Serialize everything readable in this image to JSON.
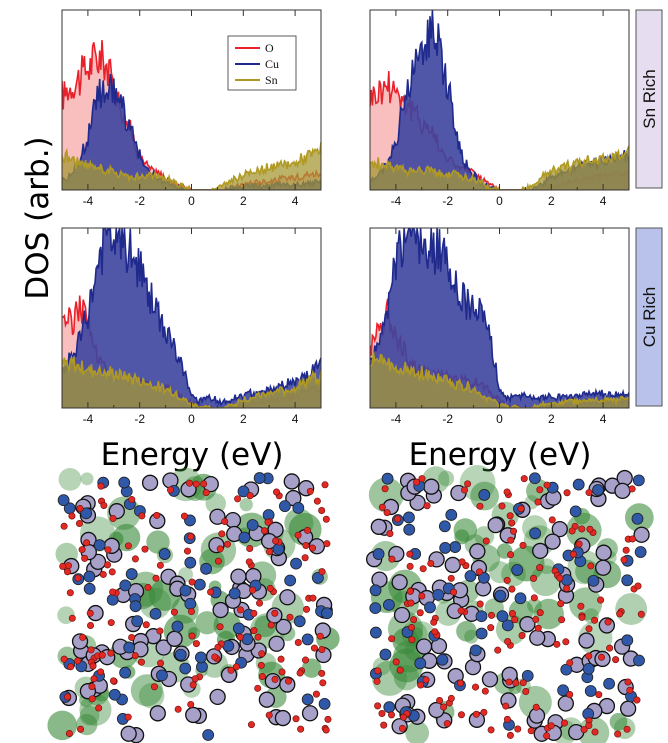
{
  "figure": {
    "ylabel": "DOS (arb.)",
    "xlabel": "Energy (eV)",
    "row_labels": [
      "Sn Rich",
      "Cu Rich"
    ]
  },
  "colors": {
    "O": "#e8212b",
    "Cu": "#1f2a8c",
    "Sn": "#b09a24",
    "O_fill": "#f7a3a3",
    "Cu_fill": "#3d45a0",
    "Sn_fill": "#a59835",
    "sn_rich_box": "#e6def0",
    "cu_rich_box": "#b9c2ea",
    "atom_cu": "#2f58a8",
    "atom_o": "#e22a24",
    "atom_sn": "#a7a0c8",
    "density": "#3b8a3b"
  },
  "chart_data": [
    {
      "type": "area",
      "panel": "sn-rich-left",
      "xlim": [
        -5,
        5
      ],
      "xticks": [
        -4,
        -2,
        0,
        2,
        4
      ],
      "legend_placement": "top-center",
      "legend": [
        "O",
        "Cu",
        "Sn"
      ],
      "series": [
        {
          "name": "O",
          "x": [
            -5,
            -4.6,
            -4.3,
            -4,
            -3.6,
            -3.3,
            -3,
            -2.6,
            -2.3,
            -2,
            -1.6,
            -1.2,
            -0.8,
            -0.4,
            0,
            0.3,
            0.8,
            1.3,
            1.7,
            2.2,
            2.8,
            3.4,
            4,
            4.5,
            5
          ],
          "y": [
            0.55,
            0.62,
            0.66,
            0.72,
            0.78,
            0.74,
            0.6,
            0.45,
            0.32,
            0.2,
            0.12,
            0.09,
            0.05,
            0.02,
            0,
            0,
            0,
            0,
            0.02,
            0.04,
            0.05,
            0.06,
            0.08,
            0.09,
            0.1
          ]
        },
        {
          "name": "Cu",
          "x": [
            -5,
            -4.6,
            -4.3,
            -4,
            -3.6,
            -3.3,
            -3,
            -2.6,
            -2.3,
            -2,
            -1.6,
            -1.2,
            -0.8,
            -0.4,
            0,
            0.3,
            0.8,
            1.3,
            1.7,
            2.2,
            2.8,
            3.4,
            4,
            4.5,
            5
          ],
          "y": [
            0.05,
            0.1,
            0.18,
            0.32,
            0.56,
            0.6,
            0.58,
            0.46,
            0.32,
            0.2,
            0.1,
            0.06,
            0.03,
            0.01,
            0,
            0,
            0,
            0,
            0.01,
            0.02,
            0.02,
            0.03,
            0.03,
            0.04,
            0.04
          ]
        },
        {
          "name": "Sn",
          "x": [
            -5,
            -4.6,
            -4.3,
            -4,
            -3.6,
            -3.3,
            -3,
            -2.6,
            -2.3,
            -2,
            -1.6,
            -1.2,
            -0.8,
            -0.4,
            0,
            0.3,
            0.8,
            1.3,
            1.7,
            2.2,
            2.8,
            3.4,
            4,
            4.5,
            5
          ],
          "y": [
            0.2,
            0.18,
            0.15,
            0.14,
            0.13,
            0.12,
            0.1,
            0.09,
            0.08,
            0.08,
            0.08,
            0.08,
            0.06,
            0.03,
            0,
            0,
            0,
            0.03,
            0.07,
            0.1,
            0.12,
            0.14,
            0.16,
            0.2,
            0.24
          ]
        }
      ]
    },
    {
      "type": "area",
      "panel": "sn-rich-right",
      "xlim": [
        -5,
        5
      ],
      "xticks": [
        -4,
        -2,
        0,
        2,
        4
      ],
      "series": [
        {
          "name": "O",
          "x": [
            -5,
            -4.6,
            -4.3,
            -4,
            -3.6,
            -3.3,
            -3,
            -2.6,
            -2.3,
            -2,
            -1.6,
            -1.2,
            -0.8,
            -0.4,
            0,
            0.3,
            0.8,
            1.3,
            1.7,
            2.2,
            2.8,
            3.4,
            4,
            4.5,
            5
          ],
          "y": [
            0.55,
            0.58,
            0.62,
            0.6,
            0.5,
            0.45,
            0.4,
            0.34,
            0.26,
            0.18,
            0.14,
            0.12,
            0.08,
            0.03,
            0,
            0,
            0,
            0,
            0.02,
            0.03,
            0.05,
            0.07,
            0.08,
            0.09,
            0.1
          ]
        },
        {
          "name": "Cu",
          "x": [
            -5,
            -4.6,
            -4.3,
            -4,
            -3.6,
            -3.3,
            -3,
            -2.6,
            -2.3,
            -2,
            -1.6,
            -1.2,
            -0.8,
            -0.4,
            0,
            0.3,
            0.8,
            1.3,
            1.7,
            2.2,
            2.8,
            3.4,
            4,
            4.5,
            5
          ],
          "y": [
            0.05,
            0.1,
            0.16,
            0.3,
            0.55,
            0.7,
            0.82,
            1.0,
            0.86,
            0.6,
            0.28,
            0.12,
            0.05,
            0.02,
            0,
            0,
            0,
            0,
            0.04,
            0.1,
            0.13,
            0.15,
            0.16,
            0.18,
            0.2
          ]
        },
        {
          "name": "Sn",
          "x": [
            -5,
            -4.6,
            -4.3,
            -4,
            -3.6,
            -3.3,
            -3,
            -2.6,
            -2.3,
            -2,
            -1.6,
            -1.2,
            -0.8,
            -0.4,
            0,
            0.3,
            0.8,
            1.3,
            1.7,
            2.2,
            2.8,
            3.4,
            4,
            4.5,
            5
          ],
          "y": [
            0.15,
            0.15,
            0.14,
            0.13,
            0.12,
            0.12,
            0.12,
            0.11,
            0.1,
            0.1,
            0.09,
            0.07,
            0.05,
            0.02,
            0,
            0,
            0,
            0.02,
            0.08,
            0.12,
            0.15,
            0.17,
            0.19,
            0.2,
            0.22
          ]
        }
      ]
    },
    {
      "type": "area",
      "panel": "cu-rich-left",
      "xlim": [
        -5,
        5
      ],
      "xticks": [
        -4,
        -2,
        0,
        2,
        4
      ],
      "series": [
        {
          "name": "O",
          "x": [
            -5,
            -4.6,
            -4.3,
            -4,
            -3.6,
            -3.3,
            -3,
            -2.6,
            -2.3,
            -2,
            -1.6,
            -1.2,
            -0.8,
            -0.4,
            0,
            0.3,
            0.8,
            1.3,
            1.7,
            2.2,
            2.8,
            3.4,
            4,
            4.5,
            5
          ],
          "y": [
            0.55,
            0.5,
            0.62,
            0.5,
            0.3,
            0.22,
            0.18,
            0.17,
            0.16,
            0.15,
            0.14,
            0.12,
            0.1,
            0.06,
            0.03,
            0.01,
            0,
            0,
            0.01,
            0.02,
            0.03,
            0.05,
            0.07,
            0.1,
            0.12
          ]
        },
        {
          "name": "Cu",
          "x": [
            -5,
            -4.6,
            -4.3,
            -4,
            -3.6,
            -3.3,
            -3,
            -2.6,
            -2.3,
            -2,
            -1.6,
            -1.2,
            -0.8,
            -0.4,
            0,
            0.3,
            0.8,
            1.3,
            1.7,
            2.2,
            2.8,
            3.4,
            4,
            4.5,
            5
          ],
          "y": [
            0.2,
            0.3,
            0.4,
            0.55,
            0.85,
            1.0,
            1.0,
            0.96,
            0.9,
            0.8,
            0.65,
            0.5,
            0.4,
            0.25,
            0.08,
            0.04,
            0.06,
            0.03,
            0.06,
            0.08,
            0.1,
            0.12,
            0.15,
            0.2,
            0.28
          ]
        },
        {
          "name": "Sn",
          "x": [
            -5,
            -4.6,
            -4.3,
            -4,
            -3.6,
            -3.3,
            -3,
            -2.6,
            -2.3,
            -2,
            -1.6,
            -1.2,
            -0.8,
            -0.4,
            0,
            0.3,
            0.8,
            1.3,
            1.7,
            2.2,
            2.8,
            3.4,
            4,
            4.5,
            5
          ],
          "y": [
            0.25,
            0.26,
            0.24,
            0.22,
            0.22,
            0.2,
            0.2,
            0.18,
            0.17,
            0.16,
            0.14,
            0.12,
            0.1,
            0.06,
            0.02,
            0.01,
            0,
            0,
            0.03,
            0.06,
            0.08,
            0.1,
            0.12,
            0.16,
            0.2
          ]
        }
      ]
    },
    {
      "type": "area",
      "panel": "cu-rich-right",
      "xlim": [
        -5,
        5
      ],
      "xticks": [
        -4,
        -2,
        0,
        2,
        4
      ],
      "series": [
        {
          "name": "O",
          "x": [
            -5,
            -4.6,
            -4.3,
            -4,
            -3.6,
            -3.3,
            -3,
            -2.6,
            -2.3,
            -2,
            -1.6,
            -1.2,
            -0.8,
            -0.4,
            0,
            0.3,
            0.8,
            1.3,
            1.7,
            2.2,
            2.8,
            3.4,
            4,
            4.5,
            5
          ],
          "y": [
            0.35,
            0.5,
            0.55,
            0.45,
            0.3,
            0.24,
            0.22,
            0.2,
            0.2,
            0.18,
            0.17,
            0.16,
            0.14,
            0.1,
            0.05,
            0.01,
            0,
            0,
            0.01,
            0.02,
            0.02,
            0.03,
            0.03,
            0.04,
            0.04
          ]
        },
        {
          "name": "Cu",
          "x": [
            -5,
            -4.6,
            -4.3,
            -4,
            -3.6,
            -3.3,
            -3,
            -2.6,
            -2.3,
            -2,
            -1.6,
            -1.2,
            -0.8,
            -0.4,
            0,
            0.3,
            0.8,
            1.3,
            1.7,
            2.2,
            2.8,
            3.4,
            4,
            4.5,
            5
          ],
          "y": [
            0.25,
            0.4,
            0.6,
            0.9,
            1.0,
            1.0,
            1.0,
            0.98,
            0.9,
            0.82,
            0.7,
            0.6,
            0.55,
            0.45,
            0.1,
            0.06,
            0.08,
            0.05,
            0.06,
            0.06,
            0.07,
            0.08,
            0.08,
            0.08,
            0.08
          ]
        },
        {
          "name": "Sn",
          "x": [
            -5,
            -4.6,
            -4.3,
            -4,
            -3.6,
            -3.3,
            -3,
            -2.6,
            -2.3,
            -2,
            -1.6,
            -1.2,
            -0.8,
            -0.4,
            0,
            0.3,
            0.8,
            1.3,
            1.7,
            2.2,
            2.8,
            3.4,
            4,
            4.5,
            5
          ],
          "y": [
            0.28,
            0.27,
            0.26,
            0.24,
            0.22,
            0.2,
            0.2,
            0.18,
            0.17,
            0.16,
            0.14,
            0.12,
            0.08,
            0.05,
            0.02,
            0.01,
            0,
            0,
            0.02,
            0.03,
            0.04,
            0.04,
            0.05,
            0.05,
            0.05
          ]
        }
      ]
    }
  ]
}
